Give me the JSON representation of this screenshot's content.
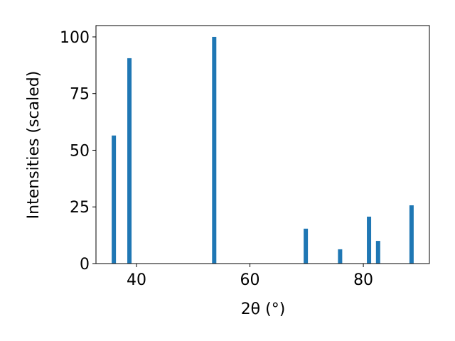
{
  "chart_data": {
    "type": "bar",
    "x_label": "2θ (°)",
    "y_label": "Intensities (scaled)",
    "x": [
      36.0,
      38.75,
      53.7,
      69.85,
      75.9,
      81.0,
      82.6,
      88.5
    ],
    "values": [
      56.5,
      90.6,
      100,
      15.4,
      6.3,
      20.7,
      10.0,
      25.7
    ],
    "color": "#1f77b4",
    "xlim": [
      32.85,
      91.65
    ],
    "xticks": [
      40,
      60,
      80
    ],
    "ylim": [
      0,
      105
    ],
    "yticks": [
      0,
      25,
      50,
      75,
      100
    ]
  }
}
